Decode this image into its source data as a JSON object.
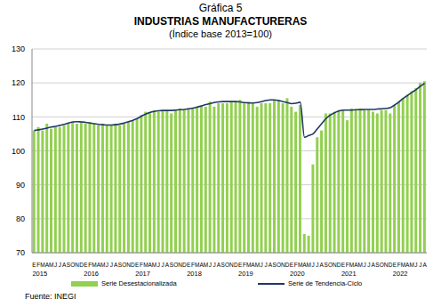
{
  "chart_data": {
    "type": "bar",
    "heading": "Gráfica 5",
    "title": "INDUSTRIAS MANUFACTURERAS",
    "subtitle": "(Índice base 2013=100)",
    "source": "Fuente: INEGI",
    "categories": [
      "E",
      "F",
      "M",
      "A",
      "M",
      "J",
      "J",
      "A",
      "S",
      "O",
      "N",
      "D",
      "E",
      "F",
      "M",
      "A",
      "M",
      "J",
      "J",
      "A",
      "S",
      "O",
      "N",
      "D",
      "E",
      "F",
      "M",
      "A",
      "M",
      "J",
      "J",
      "A",
      "S",
      "O",
      "N",
      "D",
      "E",
      "F",
      "M",
      "A",
      "M",
      "J",
      "J",
      "A",
      "S",
      "O",
      "N",
      "D",
      "E",
      "F",
      "M",
      "A",
      "M",
      "J",
      "J",
      "A",
      "S",
      "O",
      "N",
      "D",
      "E",
      "F",
      "M",
      "A",
      "M",
      "J",
      "J",
      "A",
      "S",
      "O",
      "N",
      "D",
      "E",
      "F",
      "M",
      "A",
      "M",
      "J",
      "J",
      "A",
      "S",
      "O",
      "N",
      "D",
      "E",
      "F",
      "M",
      "A",
      "M",
      "J",
      "J",
      "A"
    ],
    "year_labels": [
      "2015",
      "2016",
      "2017",
      "2018",
      "2019",
      "2020",
      "2021",
      "2022"
    ],
    "series": [
      {
        "name": "Serie Desestacionalizada",
        "type": "bar",
        "color": "#92D050",
        "values": [
          106,
          107,
          106,
          108,
          106.5,
          107,
          107,
          107.5,
          108,
          108.5,
          108,
          108.5,
          108,
          108.5,
          108,
          107.5,
          108,
          107.5,
          107.5,
          108,
          107.5,
          108,
          108.5,
          109,
          109.5,
          110.5,
          111.5,
          111,
          112,
          111.5,
          112,
          112,
          111,
          112,
          112.5,
          112,
          112.5,
          112.5,
          113,
          113,
          113,
          114.5,
          113,
          114,
          114,
          114,
          114.5,
          114.5,
          115,
          114,
          114.5,
          114,
          113,
          114,
          114,
          114,
          115,
          115,
          114,
          115.5,
          113,
          111.5,
          113.5,
          75.5,
          75,
          96,
          104,
          106,
          111,
          111,
          111.5,
          112,
          112,
          109,
          112.5,
          112,
          112.5,
          112,
          112,
          111.5,
          111,
          112,
          112,
          111,
          113.5,
          114.5,
          115.5,
          116.5,
          117.5,
          118.5,
          120,
          120.5
        ]
      },
      {
        "name": "Serie de Tendencia-Ciclo",
        "type": "line",
        "color": "#1F3864",
        "values": [
          106,
          106.2,
          106.4,
          106.7,
          107,
          107.2,
          107.5,
          107.8,
          108.2,
          108.5,
          108.6,
          108.5,
          108.4,
          108.2,
          108,
          107.8,
          107.7,
          107.6,
          107.6,
          107.7,
          107.9,
          108.2,
          108.6,
          109,
          109.5,
          110.2,
          110.8,
          111.3,
          111.6,
          111.8,
          111.9,
          111.9,
          111.9,
          112,
          112.1,
          112.2,
          112.4,
          112.6,
          112.9,
          113.2,
          113.6,
          113.9,
          114.2,
          114.4,
          114.5,
          114.5,
          114.5,
          114.5,
          114.4,
          114.2,
          114.1,
          114.1,
          114.2,
          114.5,
          114.8,
          115,
          115,
          114.8,
          114.5,
          114.2,
          113.9,
          114,
          114.3,
          104,
          104.5,
          105,
          106.5,
          108,
          109.5,
          110.5,
          111.2,
          111.7,
          112,
          112,
          112,
          112.1,
          112.1,
          112.2,
          112.2,
          112.2,
          112.3,
          112.4,
          112.5,
          112.7,
          113.5,
          114.4,
          115.4,
          116.3,
          117.2,
          118,
          119,
          119.9
        ]
      }
    ],
    "ylim": [
      70,
      130
    ],
    "yticks": [
      70,
      80,
      90,
      100,
      110,
      120,
      130
    ],
    "grid": true
  }
}
